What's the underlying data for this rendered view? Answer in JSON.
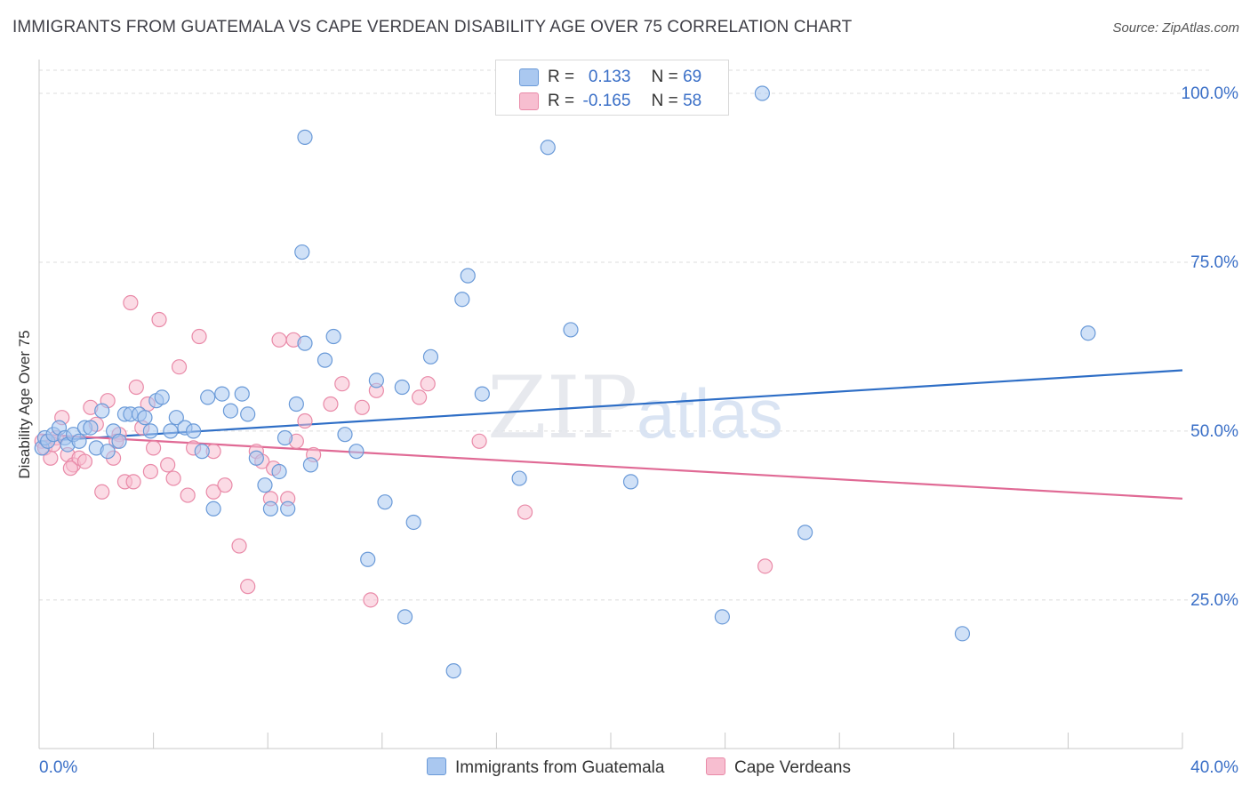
{
  "title": "IMMIGRANTS FROM GUATEMALA VS CAPE VERDEAN DISABILITY AGE OVER 75 CORRELATION CHART",
  "source": "Source: ZipAtlas.com",
  "watermark": "ZIPatlas",
  "legend": {
    "r_label": "R =",
    "n_label": "N =",
    "series1": {
      "r": "0.133",
      "n": "69"
    },
    "series2": {
      "r": "-0.165",
      "n": "58"
    }
  },
  "bottom_legend": {
    "series1": "Immigrants from Guatemala",
    "series2": "Cape Verdeans"
  },
  "colors": {
    "series1_fill": "#aac8f0",
    "series1_stroke": "#6a9ad8",
    "series1_line": "#2e6ec6",
    "series2_fill": "#f7bed0",
    "series2_stroke": "#e98aa8",
    "series2_line": "#e06a95",
    "tick_label": "#3a6fc7",
    "grid": "#dcdcdc"
  },
  "chart_data": {
    "type": "scatter",
    "title": "IMMIGRANTS FROM GUATEMALA VS CAPE VERDEAN DISABILITY AGE OVER 75 CORRELATION CHART",
    "xlabel": "",
    "ylabel": "Disability Age Over 75",
    "xlim": [
      0,
      40
    ],
    "ylim": [
      3,
      105
    ],
    "x_tick_labels": [
      "0.0%",
      "40.0%"
    ],
    "y_ticks": [
      25,
      50,
      75,
      100
    ],
    "y_tick_labels": [
      "25.0%",
      "50.0%",
      "75.0%",
      "100.0%"
    ],
    "grid": "horizontal dashed",
    "legend_position": "top-center",
    "series": [
      {
        "name": "Immigrants from Guatemala",
        "r": 0.133,
        "n": 69,
        "trend": {
          "x": [
            0,
            40
          ],
          "y": [
            48.5,
            59.0
          ]
        },
        "points": [
          [
            0.1,
            47.5
          ],
          [
            0.2,
            49
          ],
          [
            0.3,
            48.5
          ],
          [
            0.5,
            49.5
          ],
          [
            0.7,
            50.5
          ],
          [
            0.9,
            49
          ],
          [
            1.0,
            48
          ],
          [
            1.2,
            49.5
          ],
          [
            1.4,
            48.5
          ],
          [
            1.6,
            50.5
          ],
          [
            1.8,
            50.5
          ],
          [
            2.0,
            47.5
          ],
          [
            2.2,
            53
          ],
          [
            2.4,
            47
          ],
          [
            2.6,
            50
          ],
          [
            2.8,
            48.5
          ],
          [
            3.0,
            52.5
          ],
          [
            3.2,
            52.5
          ],
          [
            3.5,
            52.5
          ],
          [
            3.7,
            52
          ],
          [
            3.9,
            50
          ],
          [
            4.1,
            54.5
          ],
          [
            4.3,
            55
          ],
          [
            4.6,
            50
          ],
          [
            4.8,
            52
          ],
          [
            5.1,
            50.5
          ],
          [
            5.4,
            50
          ],
          [
            5.7,
            47
          ],
          [
            5.9,
            55
          ],
          [
            6.1,
            38.5
          ],
          [
            6.4,
            55.5
          ],
          [
            6.7,
            53
          ],
          [
            7.1,
            55.5
          ],
          [
            7.3,
            52.5
          ],
          [
            7.6,
            46
          ],
          [
            7.9,
            42
          ],
          [
            8.1,
            38.5
          ],
          [
            8.4,
            44
          ],
          [
            8.6,
            49
          ],
          [
            8.7,
            38.5
          ],
          [
            9.0,
            54
          ],
          [
            9.3,
            63
          ],
          [
            9.5,
            45
          ],
          [
            10.0,
            60.5
          ],
          [
            10.3,
            64
          ],
          [
            10.7,
            49.5
          ],
          [
            11.1,
            47
          ],
          [
            11.5,
            31
          ],
          [
            11.8,
            57.5
          ],
          [
            12.1,
            39.5
          ],
          [
            12.7,
            56.5
          ],
          [
            12.8,
            22.5
          ],
          [
            13.1,
            36.5
          ],
          [
            13.7,
            61
          ],
          [
            14.5,
            14.5
          ],
          [
            14.8,
            69.5
          ],
          [
            15.0,
            73
          ],
          [
            15.5,
            55.5
          ],
          [
            16.8,
            43
          ],
          [
            17.8,
            92
          ],
          [
            18.6,
            65
          ],
          [
            20.7,
            42.5
          ],
          [
            25.3,
            100
          ],
          [
            26.8,
            35
          ],
          [
            32.3,
            20
          ],
          [
            36.7,
            64.5
          ],
          [
            9.2,
            76.5
          ],
          [
            23.9,
            22.5
          ],
          [
            9.3,
            93.5
          ]
        ]
      },
      {
        "name": "Cape Verdeans",
        "r": -0.165,
        "n": 58,
        "trend": {
          "x": [
            0,
            40
          ],
          "y": [
            49.5,
            40.0
          ]
        },
        "points": [
          [
            0.1,
            48.5
          ],
          [
            0.2,
            47.5
          ],
          [
            0.4,
            46
          ],
          [
            0.6,
            49
          ],
          [
            0.8,
            52
          ],
          [
            1.0,
            46.5
          ],
          [
            1.2,
            45
          ],
          [
            1.4,
            46
          ],
          [
            1.6,
            45.5
          ],
          [
            1.8,
            53.5
          ],
          [
            2.0,
            51
          ],
          [
            2.2,
            41
          ],
          [
            2.4,
            54.5
          ],
          [
            2.6,
            46
          ],
          [
            2.8,
            49.5
          ],
          [
            3.0,
            42.5
          ],
          [
            3.2,
            69
          ],
          [
            3.4,
            56.5
          ],
          [
            3.6,
            50.5
          ],
          [
            3.8,
            54
          ],
          [
            4.0,
            47.5
          ],
          [
            4.2,
            66.5
          ],
          [
            4.5,
            45
          ],
          [
            4.7,
            43
          ],
          [
            4.9,
            59.5
          ],
          [
            5.2,
            40.5
          ],
          [
            5.4,
            47.5
          ],
          [
            5.6,
            64
          ],
          [
            6.1,
            41
          ],
          [
            6.5,
            42
          ],
          [
            7.0,
            33
          ],
          [
            7.3,
            27
          ],
          [
            7.6,
            47
          ],
          [
            7.8,
            45.5
          ],
          [
            8.1,
            40
          ],
          [
            8.4,
            63.5
          ],
          [
            8.7,
            40
          ],
          [
            9.0,
            48.5
          ],
          [
            9.3,
            51.5
          ],
          [
            9.6,
            46.5
          ],
          [
            10.2,
            54
          ],
          [
            10.6,
            57
          ],
          [
            11.3,
            53.5
          ],
          [
            11.6,
            25
          ],
          [
            11.8,
            56
          ],
          [
            15.4,
            48.5
          ],
          [
            17.0,
            38
          ],
          [
            13.6,
            57
          ],
          [
            13.3,
            55
          ],
          [
            8.9,
            63.5
          ],
          [
            1.1,
            44.5
          ],
          [
            0.5,
            48
          ],
          [
            3.3,
            42.5
          ],
          [
            6.1,
            47
          ],
          [
            2.7,
            48.5
          ],
          [
            3.9,
            44
          ],
          [
            25.4,
            30
          ],
          [
            8.2,
            44.5
          ]
        ]
      }
    ]
  }
}
